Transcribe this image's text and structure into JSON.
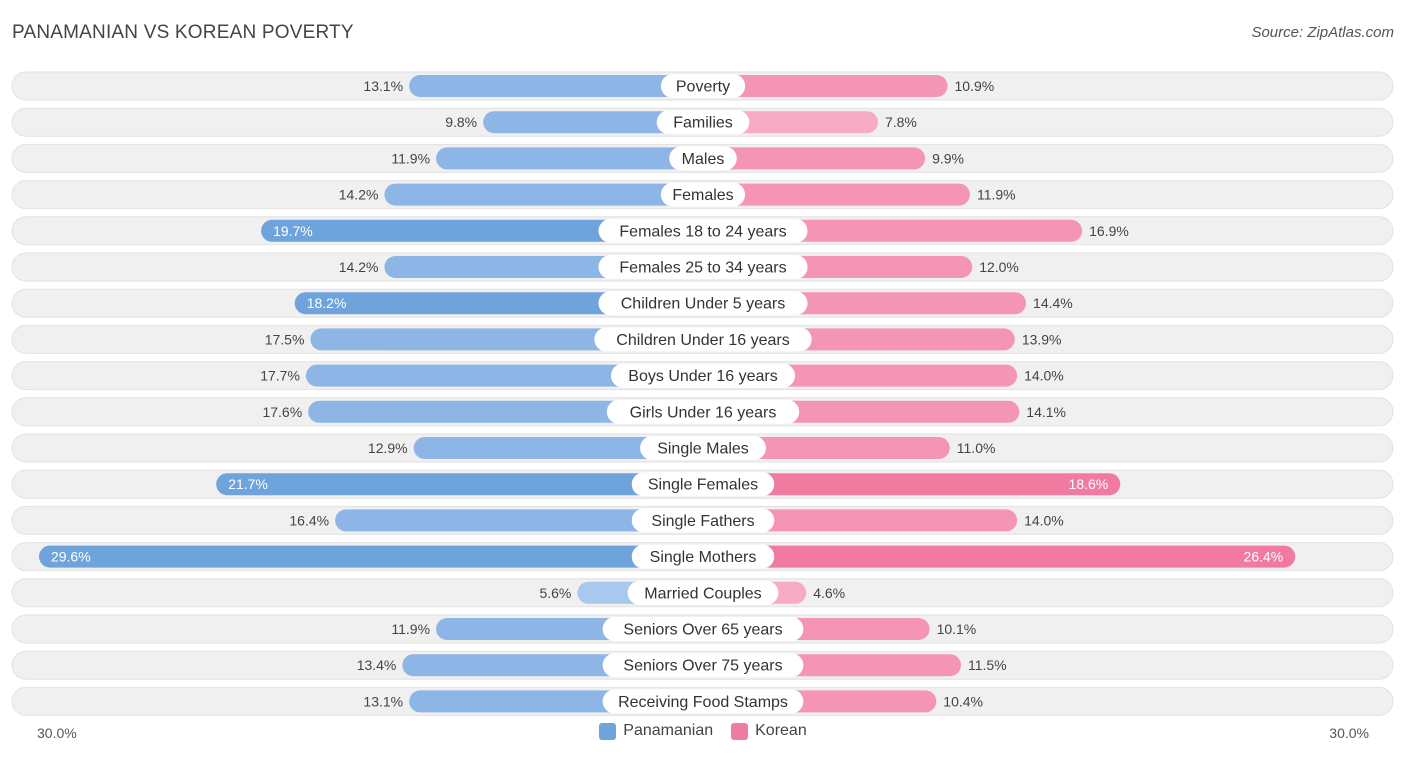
{
  "title": "PANAMANIAN VS KOREAN POVERTY",
  "source": "Source: ZipAtlas.com",
  "colors": {
    "panamanian": "#6fa3dc",
    "panamanian_light": "#a9c8ee",
    "korean": "#f17aa0",
    "korean_light": "#f7abc4",
    "row_bg": "#f0f0f0",
    "row_border": "#e2e2e2"
  },
  "chart_data": {
    "type": "bar",
    "orientation": "horizontal-diverging",
    "categories": [
      "Poverty",
      "Families",
      "Males",
      "Females",
      "Females 18 to 24 years",
      "Females 25 to 34 years",
      "Children Under 5 years",
      "Children Under 16 years",
      "Boys Under 16 years",
      "Girls Under 16 years",
      "Single Males",
      "Single Females",
      "Single Fathers",
      "Single Mothers",
      "Married Couples",
      "Seniors Over 65 years",
      "Seniors Over 75 years",
      "Receiving Food Stamps"
    ],
    "series": [
      {
        "name": "Panamanian",
        "values": [
          13.1,
          9.8,
          11.9,
          14.2,
          19.7,
          14.2,
          18.2,
          17.5,
          17.7,
          17.6,
          12.9,
          21.7,
          16.4,
          29.6,
          5.6,
          11.9,
          13.4,
          13.1
        ],
        "labels": [
          "13.1%",
          "9.8%",
          "11.9%",
          "14.2%",
          "19.7%",
          "14.2%",
          "18.2%",
          "17.5%",
          "17.7%",
          "17.6%",
          "12.9%",
          "21.7%",
          "16.4%",
          "29.6%",
          "5.6%",
          "11.9%",
          "13.4%",
          "13.1%"
        ]
      },
      {
        "name": "Korean",
        "values": [
          10.9,
          7.8,
          9.9,
          11.9,
          16.9,
          12.0,
          14.4,
          13.9,
          14.0,
          14.1,
          11.0,
          18.6,
          14.0,
          26.4,
          4.6,
          10.1,
          11.5,
          10.4
        ],
        "labels": [
          "10.9%",
          "7.8%",
          "9.9%",
          "11.9%",
          "16.9%",
          "12.0%",
          "14.4%",
          "13.9%",
          "14.0%",
          "14.1%",
          "11.0%",
          "18.6%",
          "14.0%",
          "26.4%",
          "4.6%",
          "10.1%",
          "11.5%",
          "10.4%"
        ]
      }
    ],
    "xlim": [
      -30,
      30
    ],
    "axis_labels": {
      "left": "30.0%",
      "right": "30.0%"
    },
    "legend": [
      "Panamanian",
      "Korean"
    ]
  }
}
